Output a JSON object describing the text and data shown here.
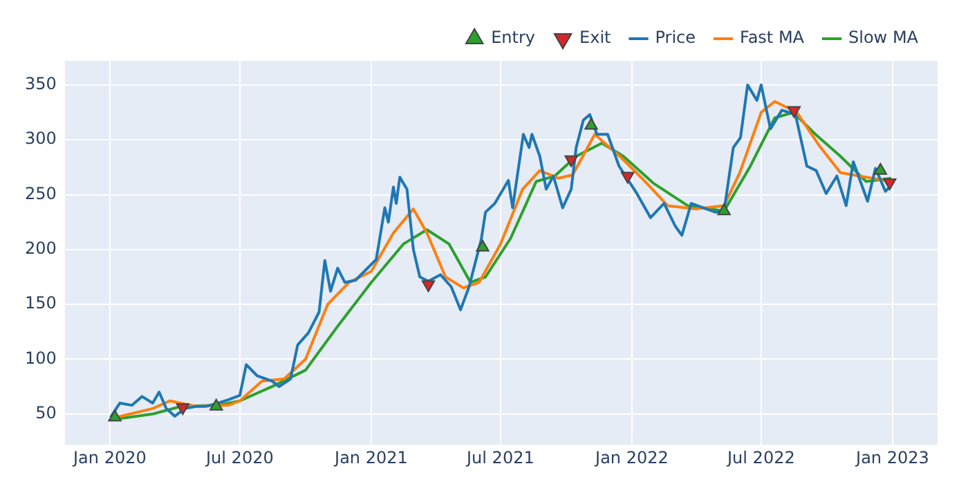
{
  "chart_data": {
    "type": "line",
    "xlim": [
      "2019-10-30",
      "2023-03-05"
    ],
    "ylim": [
      22,
      372
    ],
    "xticks": [
      {
        "value": "2020-01",
        "label": "Jan 2020"
      },
      {
        "value": "2020-07",
        "label": "Jul 2020"
      },
      {
        "value": "2021-01",
        "label": "Jan 2021"
      },
      {
        "value": "2021-07",
        "label": "Jul 2021"
      },
      {
        "value": "2022-01",
        "label": "Jan 2022"
      },
      {
        "value": "2022-07",
        "label": "Jul 2022"
      },
      {
        "value": "2023-01",
        "label": "Jan 2023"
      }
    ],
    "yticks": [
      50,
      100,
      150,
      200,
      250,
      300,
      350
    ],
    "grid": true,
    "legend": "top right",
    "marker": "none",
    "line_style": "solid",
    "series": [
      {
        "name": "Price",
        "color": "#1f77b4",
        "x": [
          "2020-01-02",
          "2020-01-15",
          "2020-02-01",
          "2020-02-15",
          "2020-03-01",
          "2020-03-10",
          "2020-03-20",
          "2020-04-01",
          "2020-04-15",
          "2020-05-01",
          "2020-05-15",
          "2020-06-01",
          "2020-06-15",
          "2020-07-01",
          "2020-07-10",
          "2020-07-25",
          "2020-08-15",
          "2020-08-25",
          "2020-09-10",
          "2020-09-20",
          "2020-10-05",
          "2020-10-20",
          "2020-10-28",
          "2020-11-05",
          "2020-11-15",
          "2020-11-25",
          "2020-12-10",
          "2021-01-08",
          "2021-01-20",
          "2021-01-25",
          "2021-02-01",
          "2021-02-05",
          "2021-02-10",
          "2021-02-20",
          "2021-03-01",
          "2021-03-10",
          "2021-03-22",
          "2021-04-08",
          "2021-04-23",
          "2021-05-06",
          "2021-05-18",
          "2021-06-04",
          "2021-06-10",
          "2021-06-23",
          "2021-07-12",
          "2021-07-18",
          "2021-08-02",
          "2021-08-10",
          "2021-08-14",
          "2021-08-25",
          "2021-09-03",
          "2021-09-13",
          "2021-09-26",
          "2021-10-08",
          "2021-10-15",
          "2021-10-25",
          "2021-11-03",
          "2021-11-13",
          "2021-11-28",
          "2021-12-14",
          "2022-01-08",
          "2022-01-27",
          "2022-02-15",
          "2022-03-03",
          "2022-03-12",
          "2022-03-25",
          "2022-04-28",
          "2022-05-10",
          "2022-05-23",
          "2022-06-02",
          "2022-06-12",
          "2022-06-25",
          "2022-07-01",
          "2022-07-14",
          "2022-07-30",
          "2022-08-18",
          "2022-09-03",
          "2022-09-16",
          "2022-09-30",
          "2022-10-15",
          "2022-10-28",
          "2022-11-07",
          "2022-11-27",
          "2022-12-08",
          "2022-12-22",
          "2022-12-28"
        ],
        "values": [
          47,
          60,
          58,
          66,
          60,
          70,
          55,
          48,
          55,
          57,
          57,
          60,
          63,
          67,
          95,
          85,
          80,
          75,
          82,
          113,
          124,
          143,
          190,
          162,
          183,
          170,
          172,
          191,
          238,
          225,
          257,
          242,
          266,
          255,
          200,
          175,
          171,
          177,
          166,
          145,
          166,
          209,
          234,
          242,
          263,
          238,
          305,
          293,
          305,
          285,
          255,
          267,
          238,
          255,
          293,
          318,
          323,
          305,
          305,
          276,
          251,
          229,
          242,
          221,
          213,
          242,
          234,
          235,
          293,
          302,
          350,
          336,
          350,
          310,
          327,
          323,
          276,
          272,
          251,
          267,
          240,
          280,
          244,
          274,
          253,
          257
        ]
      },
      {
        "name": "Fast MA",
        "color": "#ff7f0e",
        "x": [
          "2020-01-10",
          "2020-03-01",
          "2020-03-25",
          "2020-05-01",
          "2020-06-15",
          "2020-07-01",
          "2020-08-01",
          "2020-09-01",
          "2020-10-01",
          "2020-11-01",
          "2020-12-01",
          "2021-01-01",
          "2021-02-01",
          "2021-03-01",
          "2021-03-20",
          "2021-04-15",
          "2021-05-10",
          "2021-06-01",
          "2021-07-01",
          "2021-08-01",
          "2021-08-25",
          "2021-09-20",
          "2021-10-10",
          "2021-11-10",
          "2021-12-15",
          "2022-01-15",
          "2022-02-20",
          "2022-04-01",
          "2022-05-10",
          "2022-06-01",
          "2022-07-01",
          "2022-07-20",
          "2022-08-20",
          "2022-09-20",
          "2022-10-20",
          "2022-12-30"
        ],
        "values": [
          47,
          55,
          62,
          57,
          58,
          62,
          80,
          82,
          100,
          150,
          170,
          180,
          215,
          237,
          215,
          175,
          165,
          170,
          205,
          255,
          272,
          265,
          268,
          305,
          285,
          265,
          240,
          237,
          240,
          270,
          325,
          335,
          325,
          295,
          270,
          262
        ]
      },
      {
        "name": "Slow MA",
        "color": "#2ca02c",
        "x": [
          "2020-01-05",
          "2020-03-01",
          "2020-04-10",
          "2020-06-01",
          "2020-07-01",
          "2020-08-15",
          "2020-10-01",
          "2020-11-15",
          "2021-01-01",
          "2021-02-15",
          "2021-03-20",
          "2021-04-20",
          "2021-05-20",
          "2021-06-10",
          "2021-07-15",
          "2021-08-20",
          "2021-09-15",
          "2021-10-15",
          "2021-11-20",
          "2021-12-20",
          "2022-02-01",
          "2022-03-20",
          "2022-05-10",
          "2022-06-15",
          "2022-07-20",
          "2022-08-15",
          "2022-09-15",
          "2022-10-20",
          "2022-11-25",
          "2022-12-30"
        ],
        "values": [
          45,
          50,
          57,
          58,
          62,
          75,
          90,
          130,
          170,
          205,
          218,
          205,
          170,
          175,
          210,
          262,
          267,
          285,
          297,
          285,
          260,
          240,
          235,
          275,
          320,
          325,
          305,
          285,
          262,
          265
        ]
      },
      {
        "name": "Entry",
        "type": "scatter",
        "marker": "triangle",
        "color": "#2ca02c",
        "x": [
          "2020-01-08",
          "2020-05-29",
          "2021-06-06",
          "2021-11-05",
          "2022-05-10",
          "2022-12-15"
        ],
        "values": [
          47,
          57,
          202,
          313,
          235,
          272
        ]
      },
      {
        "name": "Exit",
        "type": "scatter",
        "marker": "triangle-down",
        "color": "#d62728",
        "x": [
          "2020-04-12",
          "2021-03-22",
          "2021-10-08",
          "2021-12-26",
          "2022-08-16",
          "2022-12-28"
        ],
        "values": [
          56,
          168,
          282,
          267,
          327,
          261
        ]
      }
    ]
  }
}
